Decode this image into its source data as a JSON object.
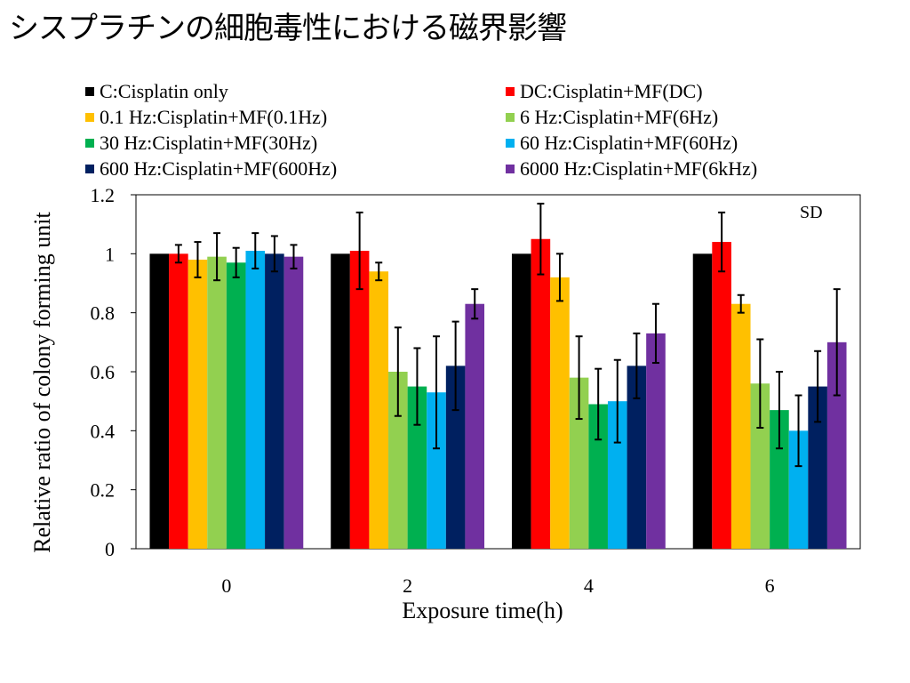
{
  "slide": {
    "title": "シスプラチンの細胞毒性における磁界影響"
  },
  "chart_data": {
    "type": "bar",
    "title": "",
    "xlabel": "Exposure time(h)",
    "ylabel": "Relative ratio of colony forming unit",
    "annotation": "SD",
    "categories": [
      "0",
      "2",
      "4",
      "6"
    ],
    "ylim": [
      0,
      1.2
    ],
    "yticks": [
      "0",
      "0.2",
      "0.4",
      "0.6",
      "0.8",
      "1",
      "1.2"
    ],
    "grid": false,
    "legend_position": "top",
    "series": [
      {
        "name": "C:Cisplatin only",
        "color": "#000000",
        "values": [
          1.0,
          1.0,
          1.0,
          1.0
        ],
        "errors": [
          0,
          0,
          0,
          0
        ]
      },
      {
        "name": "DC:Cisplatin+MF(DC)",
        "color": "#ff0000",
        "values": [
          1.0,
          1.01,
          1.05,
          1.04
        ],
        "errors": [
          0.03,
          0.13,
          0.12,
          0.1
        ]
      },
      {
        "name": "0.1 Hz:Cisplatin+MF(0.1Hz)",
        "color": "#ffc000",
        "values": [
          0.98,
          0.94,
          0.92,
          0.83
        ],
        "errors": [
          0.06,
          0.03,
          0.08,
          0.03
        ]
      },
      {
        "name": "6 Hz:Cisplatin+MF(6Hz)",
        "color": "#92d050",
        "values": [
          0.99,
          0.6,
          0.58,
          0.56
        ],
        "errors": [
          0.08,
          0.15,
          0.14,
          0.15
        ]
      },
      {
        "name": "30 Hz:Cisplatin+MF(30Hz)",
        "color": "#00b050",
        "values": [
          0.97,
          0.55,
          0.49,
          0.47
        ],
        "errors": [
          0.05,
          0.13,
          0.12,
          0.13
        ]
      },
      {
        "name": "60 Hz:Cisplatin+MF(60Hz)",
        "color": "#00b0f0",
        "values": [
          1.01,
          0.53,
          0.5,
          0.4
        ],
        "errors": [
          0.06,
          0.19,
          0.14,
          0.12
        ]
      },
      {
        "name": "600 Hz:Cisplatin+MF(600Hz)",
        "color": "#002060",
        "values": [
          1.0,
          0.62,
          0.62,
          0.55
        ],
        "errors": [
          0.06,
          0.15,
          0.11,
          0.12
        ]
      },
      {
        "name": "6000 Hz:Cisplatin+MF(6kHz)",
        "color": "#7030a0",
        "values": [
          0.99,
          0.83,
          0.73,
          0.7
        ],
        "errors": [
          0.04,
          0.05,
          0.1,
          0.18
        ]
      }
    ]
  }
}
